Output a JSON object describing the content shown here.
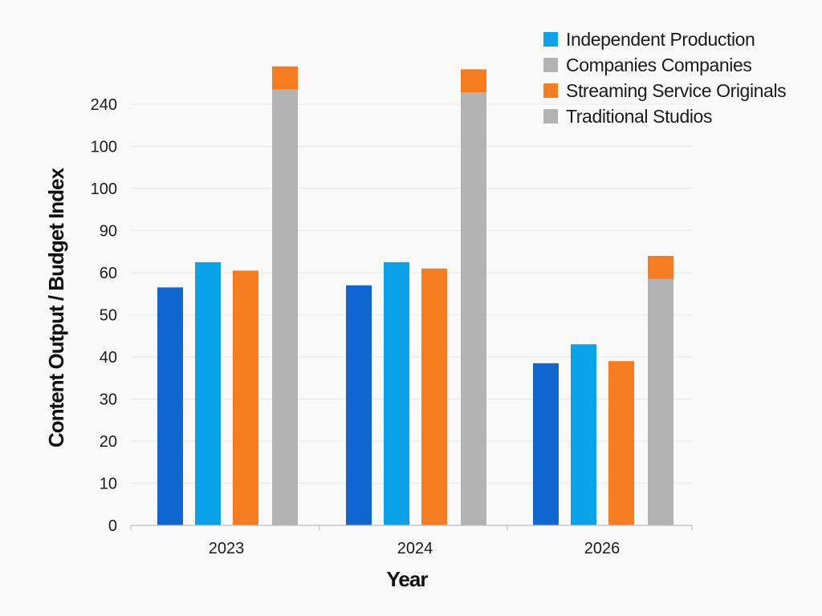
{
  "chart_data": {
    "type": "bar",
    "title": "",
    "xlabel": "Year",
    "ylabel": "Content Output / Budget Index",
    "categories": [
      "2023",
      "2024",
      "2026"
    ],
    "y_tick_labels": [
      "0",
      "10",
      "20",
      "30",
      "40",
      "50",
      "60",
      "90",
      "100",
      "100",
      "240"
    ],
    "grid": true,
    "legend_position": "top-right",
    "legend": [
      {
        "label": "Independent Production",
        "color": "#0aa3ea"
      },
      {
        "label": "Companies Companies",
        "color": "#b3b3b3"
      },
      {
        "label": "Streaming Service Originals",
        "color": "#f57c1f"
      },
      {
        "label": "Traditional Studios",
        "color": "#b3b3b3"
      }
    ],
    "series": [
      {
        "color": "#0f66d0",
        "values": [
          56.5,
          57,
          38.5
        ]
      },
      {
        "name": "Independent Production",
        "color": "#0aa3ea",
        "values": [
          62.5,
          62.5,
          43
        ]
      },
      {
        "name": "Streaming Service Originals",
        "color": "#f57c1f",
        "values": [
          60.5,
          61,
          39
        ]
      },
      {
        "name": "Traditional Studios",
        "color": "#b3b3b3",
        "values": [
          103.5,
          102.8,
          58.5
        ]
      },
      {
        "name": "Streaming Service Originals",
        "color": "#f57c1f",
        "stack_on": 3,
        "values": [
          5.5,
          5.5,
          5.5
        ]
      }
    ]
  }
}
